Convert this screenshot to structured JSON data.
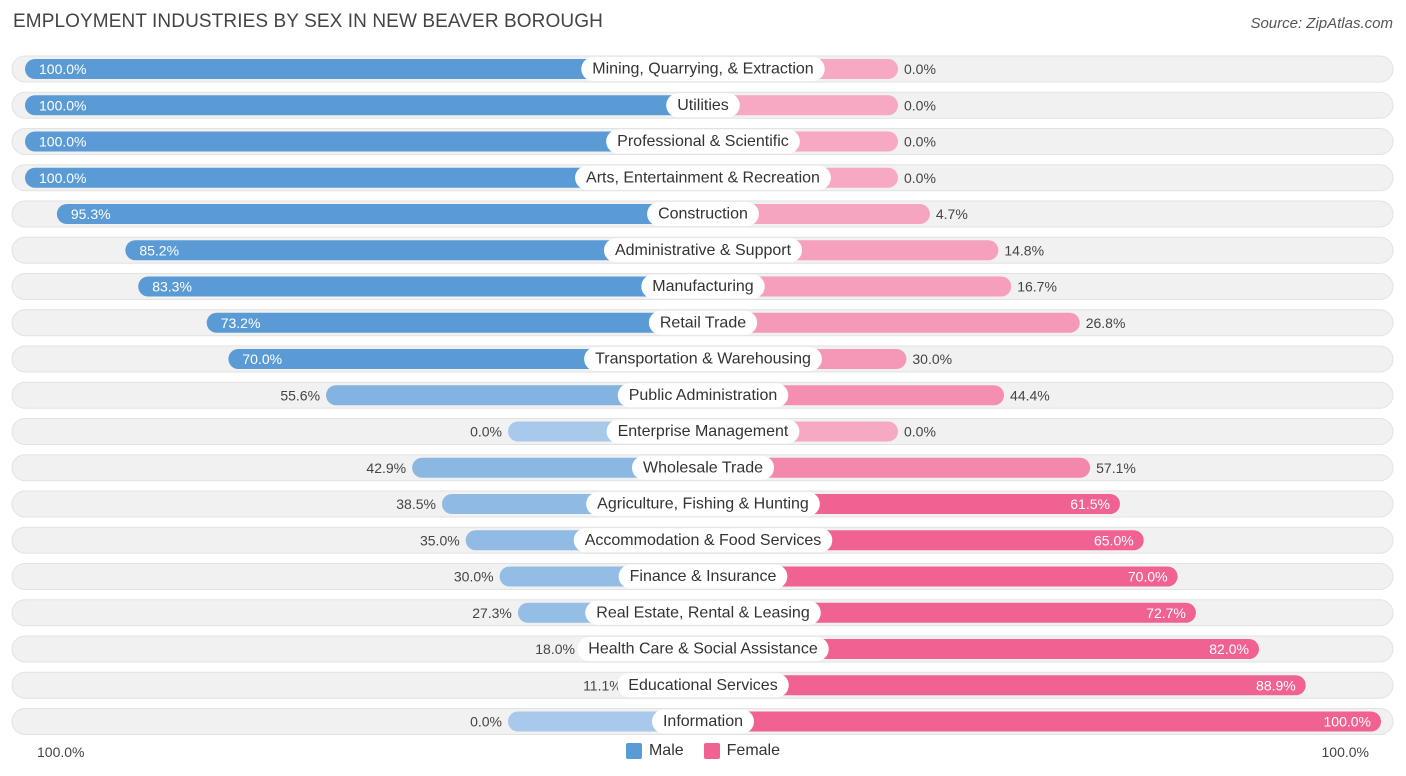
{
  "title": "EMPLOYMENT INDUSTRIES BY SEX IN NEW BEAVER BOROUGH",
  "source": "Source: ZipAtlas.com",
  "colors": {
    "male": "#5b9bd5",
    "male_light": "#a6c8ea",
    "female": "#f06292",
    "female_light": "#f6a8c2",
    "track": "#efefef"
  },
  "legend": {
    "male": "Male",
    "female": "Female"
  },
  "axis": {
    "left_label": "100.0%",
    "right_label": "100.0%"
  },
  "chart_data": {
    "type": "bar",
    "orientation": "horizontal-diverging",
    "xlim": [
      -100,
      100
    ],
    "categories": [
      "Mining, Quarrying, & Extraction",
      "Utilities",
      "Professional & Scientific",
      "Arts, Entertainment & Recreation",
      "Construction",
      "Administrative & Support",
      "Manufacturing",
      "Retail Trade",
      "Transportation & Warehousing",
      "Public Administration",
      "Enterprise Management",
      "Wholesale Trade",
      "Agriculture, Fishing & Hunting",
      "Accommodation & Food Services",
      "Finance & Insurance",
      "Real Estate, Rental & Leasing",
      "Health Care & Social Assistance",
      "Educational Services",
      "Information"
    ],
    "series": [
      {
        "name": "Male",
        "values": [
          100.0,
          100.0,
          100.0,
          100.0,
          95.3,
          85.2,
          83.3,
          73.2,
          70.0,
          55.6,
          0.0,
          42.9,
          38.5,
          35.0,
          30.0,
          27.3,
          18.0,
          11.1,
          0.0
        ],
        "labels": [
          "100.0%",
          "100.0%",
          "100.0%",
          "100.0%",
          "95.3%",
          "85.2%",
          "83.3%",
          "73.2%",
          "70.0%",
          "55.6%",
          "0.0%",
          "42.9%",
          "38.5%",
          "35.0%",
          "30.0%",
          "27.3%",
          "18.0%",
          "11.1%",
          "0.0%"
        ]
      },
      {
        "name": "Female",
        "values": [
          0.0,
          0.0,
          0.0,
          0.0,
          4.7,
          14.8,
          16.7,
          26.8,
          30.0,
          44.4,
          0.0,
          57.1,
          61.5,
          65.0,
          70.0,
          72.7,
          82.0,
          88.9,
          100.0
        ],
        "labels": [
          "0.0%",
          "0.0%",
          "0.0%",
          "0.0%",
          "4.7%",
          "14.8%",
          "16.7%",
          "26.8%",
          "30.0%",
          "44.4%",
          "0.0%",
          "57.1%",
          "61.5%",
          "65.0%",
          "70.0%",
          "72.7%",
          "82.0%",
          "88.9%",
          "100.0%"
        ]
      }
    ]
  }
}
